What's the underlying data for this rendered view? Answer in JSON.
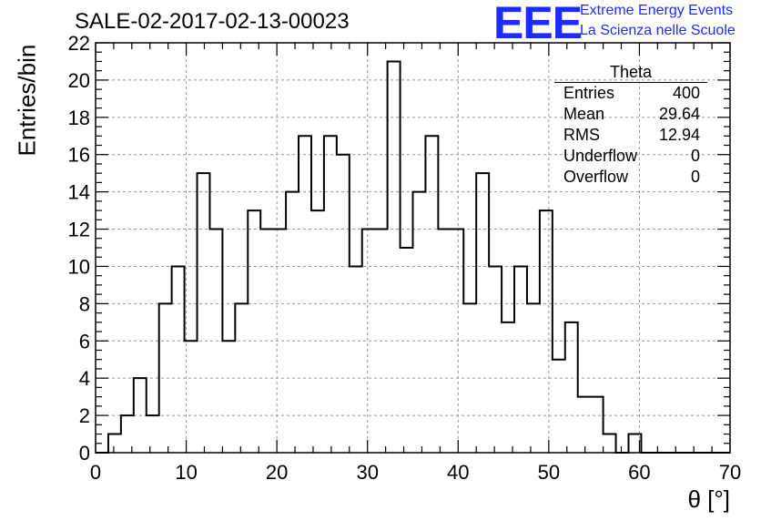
{
  "header": {
    "title": "SALE-02-2017-02-13-00023",
    "logo_mark": "EEE",
    "logo_line1": "Extreme Energy Events",
    "logo_line2": "La Scienza nelle Scuole",
    "logo_color": "#1c2bff"
  },
  "stats": {
    "title": "Theta",
    "rows": [
      {
        "label": "Entries",
        "value": "400"
      },
      {
        "label": "Mean",
        "value": "29.64"
      },
      {
        "label": "RMS",
        "value": "12.94"
      },
      {
        "label": "Underflow",
        "value": "0"
      },
      {
        "label": "Overflow",
        "value": "0"
      }
    ]
  },
  "chart_data": {
    "type": "bar",
    "histogram": true,
    "xlabel": "θ [°]",
    "ylabel": "Entries/bin",
    "xlim": [
      0,
      70
    ],
    "ylim": [
      0,
      22
    ],
    "xticks": [
      0,
      10,
      20,
      30,
      40,
      50,
      60,
      70
    ],
    "yticks": [
      0,
      2,
      4,
      6,
      8,
      10,
      12,
      14,
      16,
      18,
      20,
      22
    ],
    "grid": true,
    "bin_width": 1.4,
    "bin_start": 0,
    "values": [
      0,
      1,
      2,
      4,
      2,
      8,
      10,
      6,
      15,
      12,
      6,
      8,
      13,
      12,
      12,
      14,
      17,
      13,
      17,
      16,
      10,
      12,
      12,
      21,
      11,
      14,
      17,
      12,
      12,
      8,
      15,
      10,
      7,
      10,
      8,
      13,
      5,
      7,
      3,
      3,
      1,
      0,
      1,
      0,
      0,
      0,
      0,
      0,
      0,
      0
    ]
  }
}
